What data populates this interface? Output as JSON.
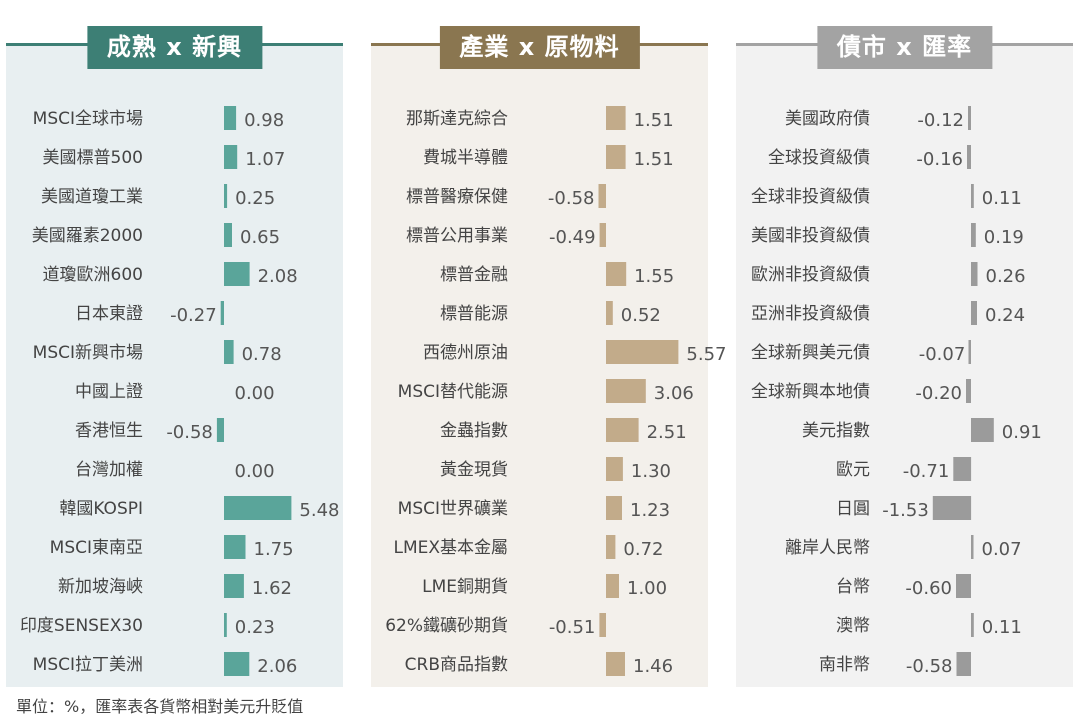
{
  "footnote": "單位：%，匯率表各貨幣相對美元升貶值",
  "panels": [
    {
      "title": "成熟 x 新興",
      "header_color": "#3d7f75",
      "bar_color": "#5aa59a",
      "bg_color": "#e8eff1"
    },
    {
      "title": "產業 x 原物料",
      "header_color": "#8a7650",
      "bar_color": "#c2ab8a",
      "bg_color": "#f3f0eb"
    },
    {
      "title": "債市 x 匯率",
      "header_color": "#a3a3a3",
      "bar_color": "#9b9b9b",
      "bg_color": "#f2f2f2"
    }
  ],
  "chart_data": [
    {
      "type": "bar",
      "orientation": "horizontal",
      "title": "成熟 x 新興",
      "categories": [
        "MSCI全球市場",
        "美國標普500",
        "美國道瓊工業",
        "美國羅素2000",
        "道瓊歐洲600",
        "日本東證",
        "MSCI新興市場",
        "中國上證",
        "香港恒生",
        "台灣加權",
        "韓國KOSPI",
        "MSCI東南亞",
        "新加坡海峽",
        "印度SENSEX30",
        "MSCI拉丁美洲"
      ],
      "values": [
        0.98,
        1.07,
        0.25,
        0.65,
        2.08,
        -0.27,
        0.78,
        0.0,
        -0.58,
        0.0,
        5.48,
        1.75,
        1.62,
        0.23,
        2.06
      ],
      "value_labels": [
        "0.98",
        "1.07",
        "0.25",
        "0.65",
        "2.08",
        "-0.27",
        "0.78",
        "0.00",
        "-0.58",
        "0.00",
        "5.48",
        "1.75",
        "1.62",
        "0.23",
        "2.06"
      ]
    },
    {
      "type": "bar",
      "orientation": "horizontal",
      "title": "產業 x 原物料",
      "categories": [
        "那斯達克綜合",
        "費城半導體",
        "標普醫療保健",
        "標普公用事業",
        "標普金融",
        "標普能源",
        "西德州原油",
        "MSCI替代能源",
        "金蟲指數",
        "黃金現貨",
        "MSCI世界礦業",
        "LMEX基本金屬",
        "LME銅期貨",
        "62%鐵礦砂期貨",
        "CRB商品指數"
      ],
      "values": [
        1.51,
        1.51,
        -0.58,
        -0.49,
        1.55,
        0.52,
        5.57,
        3.06,
        2.51,
        1.3,
        1.23,
        0.72,
        1.0,
        -0.51,
        1.46
      ],
      "value_labels": [
        "1.51",
        "1.51",
        "-0.58",
        "-0.49",
        "1.55",
        "0.52",
        "5.57",
        "3.06",
        "2.51",
        "1.30",
        "1.23",
        "0.72",
        "1.00",
        "-0.51",
        "1.46"
      ]
    },
    {
      "type": "bar",
      "orientation": "horizontal",
      "title": "債市 x 匯率",
      "categories": [
        "美國政府債",
        "全球投資級債",
        "全球非投資級債",
        "美國非投資級債",
        "歐洲非投資級債",
        "亞洲非投資級債",
        "全球新興美元債",
        "全球新興本地債",
        "美元指數",
        "歐元",
        "日圓",
        "離岸人民幣",
        "台幣",
        "澳幣",
        "南非幣"
      ],
      "values": [
        -0.12,
        -0.16,
        0.11,
        0.19,
        0.26,
        0.24,
        -0.07,
        -0.2,
        0.91,
        -0.71,
        -1.53,
        0.07,
        -0.6,
        0.11,
        -0.58
      ],
      "value_labels": [
        "-0.12",
        "-0.16",
        "0.11",
        "0.19",
        "0.26",
        "0.24",
        "-0.07",
        "-0.20",
        "0.91",
        "-0.71",
        "-1.53",
        "0.07",
        "-0.60",
        "0.11",
        "-0.58"
      ]
    }
  ]
}
